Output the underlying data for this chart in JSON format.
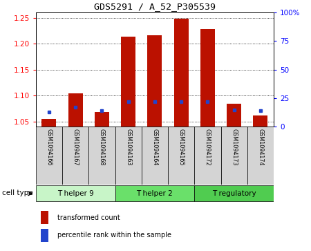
{
  "title": "GDS5291 / A_52_P305539",
  "samples": [
    "GSM1094166",
    "GSM1094167",
    "GSM1094168",
    "GSM1094163",
    "GSM1094164",
    "GSM1094165",
    "GSM1094172",
    "GSM1094173",
    "GSM1094174"
  ],
  "red_values": [
    1.055,
    1.105,
    1.068,
    1.213,
    1.216,
    1.248,
    1.228,
    1.085,
    1.062
  ],
  "blue_pct": [
    13,
    17,
    14,
    22,
    22,
    22,
    22,
    15,
    14
  ],
  "ylim_left": [
    1.04,
    1.26
  ],
  "ylim_right": [
    0,
    100
  ],
  "yticks_left": [
    1.05,
    1.1,
    1.15,
    1.2,
    1.25
  ],
  "yticks_right": [
    0,
    25,
    50,
    75,
    100
  ],
  "cell_groups": [
    {
      "label": "T helper 9",
      "indices": [
        0,
        1,
        2
      ],
      "color": "#c8f5c8"
    },
    {
      "label": "T helper 2",
      "indices": [
        3,
        4,
        5
      ],
      "color": "#6ae06a"
    },
    {
      "label": "T regulatory",
      "indices": [
        6,
        7,
        8
      ],
      "color": "#50cc50"
    }
  ],
  "bar_width": 0.55,
  "bar_color_red": "#bb1100",
  "bar_color_blue": "#2244cc",
  "background_color": "#ffffff",
  "grid_color": "#000000",
  "legend_labels": [
    "transformed count",
    "percentile rank within the sample"
  ],
  "cell_type_label": "cell type"
}
